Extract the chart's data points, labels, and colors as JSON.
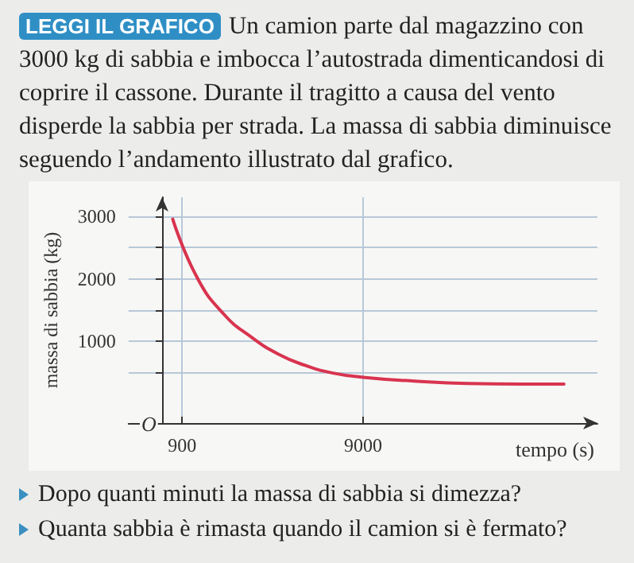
{
  "chart_data": {
    "type": "line",
    "title": "LEGGI IL GRAFICO",
    "subtitle": "Un camion parte dal magazzino con 3000 kg di sabbia e imbocca l’autostrada dimenticandosi di coprire il cassone. Durante il tragitto a causa del vento disperde la sabbia per strada. La massa di sabbia diminuisce seguendo l’andamento illustrato dal grafico.",
    "annotations": [
      "O",
      "Dopo quanti minuti la massa di sabbia si dimezza?",
      "Quanta sabbia è rimasta quando il camion si è fermato?"
    ],
    "xlabel": "tempo (s)",
    "ylabel": "massa di sabbia (kg)",
    "x": [
      480,
      1570,
      2780,
      4000,
      5200,
      6400,
      7600,
      9000,
      11300,
      13700,
      16100,
      18000
    ],
    "series": [
      {
        "color": "#d8344f",
        "values": [
          2950,
          2020,
          1430,
          1070,
          800,
          620,
          500,
          430,
          370,
          330,
          320,
          320
        ]
      }
    ],
    "xlim": [
      -1500,
      19500
    ],
    "ylim": [
      -300,
      3300
    ],
    "xticks": [
      {
        "value": 0,
        "label": null
      },
      900,
      9000
    ],
    "yticks": [
      {
        "value": 500,
        "label": null
      },
      1000,
      {
        "value": 1500,
        "label": null
      },
      2000,
      {
        "value": 2500,
        "label": null
      },
      3000
    ],
    "grid": true,
    "marker": "none",
    "line_style": "solid"
  }
}
